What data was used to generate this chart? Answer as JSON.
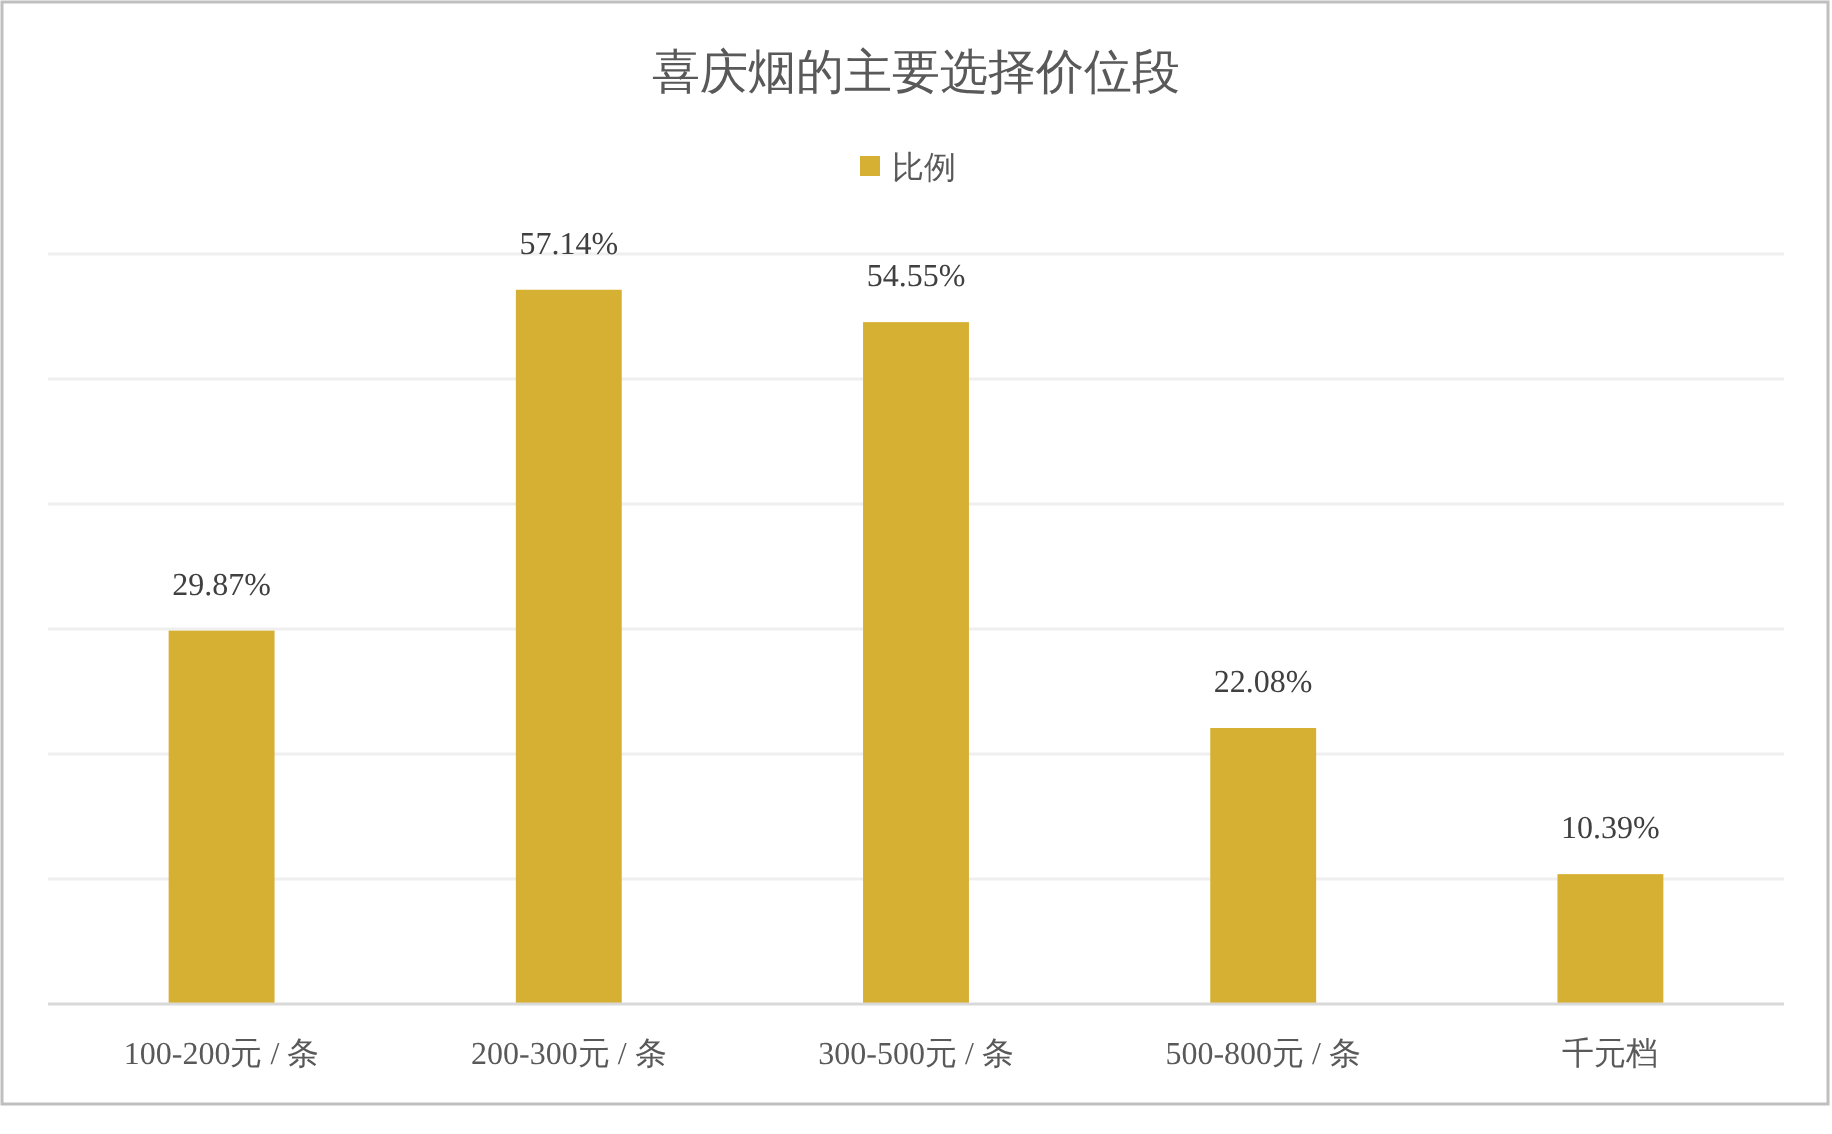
{
  "chart_data": {
    "type": "bar",
    "title": "喜庆烟的主要选择价位段",
    "categories": [
      "100-200元 / 条",
      "200-300元 / 条",
      "300-500元 / 条",
      "500-800元 / 条",
      "千元档"
    ],
    "series": [
      {
        "name": "比例",
        "color": "#d6b033",
        "values": [
          29.87,
          57.14,
          54.55,
          22.08,
          10.39
        ],
        "value_labels": [
          "29.87%",
          "57.14%",
          "54.55%",
          "22.08%",
          "10.39%"
        ]
      }
    ],
    "ylim": [
      0,
      60
    ],
    "yticks": [
      0,
      10,
      20,
      30,
      40,
      50,
      60
    ],
    "grid": "y",
    "legend": "top",
    "tick_labels": "x"
  }
}
